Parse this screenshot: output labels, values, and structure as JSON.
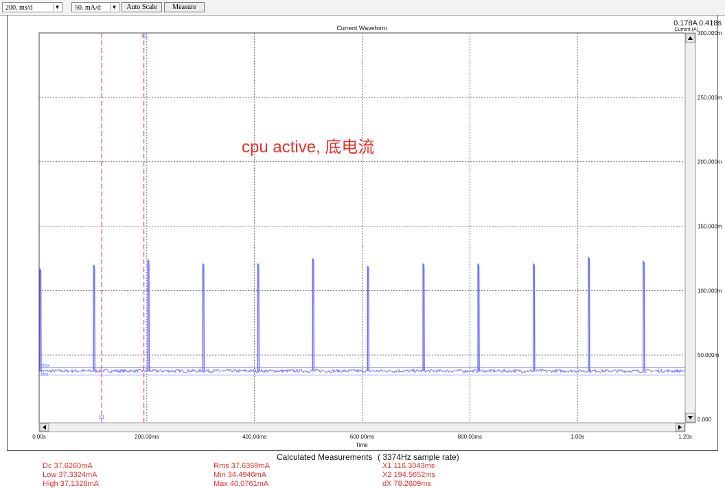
{
  "toolbar": {
    "time_div": "200. ms/d",
    "amp_div": "50. mA/d",
    "auto_scale": "Auto Scale",
    "measure": "Measure"
  },
  "header": {
    "current_value": "0.178A",
    "time_value": "0.418s",
    "axis_unit": "Current (A)"
  },
  "annotation": "cpu active, 底电流",
  "colors": {
    "trace": "#6b6bff",
    "cursor": "#ff4040",
    "annotation": "#e8302a",
    "grid": "#555555"
  },
  "chart_data": {
    "type": "line",
    "title": "Current Waveform",
    "xlabel": "Time",
    "ylabel": "Current (A)",
    "xlim": [
      0,
      1.2
    ],
    "ylim": [
      0,
      300
    ],
    "x_ticks": [
      0,
      0.2,
      0.4,
      0.6,
      0.8,
      1.0,
      1.2
    ],
    "x_tick_labels": [
      "0.00s",
      "200.00ms",
      "400.00ms",
      "600.00ms",
      "800.00ms",
      "1.00s",
      "1.20s"
    ],
    "y_ticks": [
      0,
      50,
      100,
      150,
      200,
      250,
      300
    ],
    "y_tick_labels": [
      "0.000",
      "50.000m",
      "100.000m",
      "150.000m",
      "200.000m",
      "250.000m",
      "300.000m"
    ],
    "grid": true,
    "baseline_mA": 37.6,
    "spikes": [
      {
        "t": 0.0,
        "peak_mA": 117
      },
      {
        "t": 0.101,
        "peak_mA": 120
      },
      {
        "t": 0.202,
        "peak_mA": 124
      },
      {
        "t": 0.304,
        "peak_mA": 121
      },
      {
        "t": 0.406,
        "peak_mA": 121
      },
      {
        "t": 0.508,
        "peak_mA": 125
      },
      {
        "t": 0.61,
        "peak_mA": 119
      },
      {
        "t": 0.713,
        "peak_mA": 121
      },
      {
        "t": 0.815,
        "peak_mA": 121
      },
      {
        "t": 0.918,
        "peak_mA": 121
      },
      {
        "t": 1.02,
        "peak_mA": 126
      },
      {
        "t": 1.122,
        "peak_mA": 123
      }
    ],
    "max_line_mA": 40.1,
    "min_line_mA": 34.5,
    "max_label": "Max",
    "min_label": "Min",
    "cursors": [
      {
        "name": "X1",
        "t": 0.1163
      },
      {
        "name": "X2",
        "t": 0.1946
      }
    ]
  },
  "measurements": {
    "title": "Calculated Measurements",
    "sample_rate": "( 3374Hz sample rate)",
    "col1": [
      "Dc  37.6260mA",
      "Low  37.3324mA",
      "High  37.1328mA"
    ],
    "col2": [
      "Rms  37.6369mA",
      "Min  34.4946mA",
      "Max  40.0761mA"
    ],
    "col3": [
      "X1  116.3043ms",
      "X2  194.5652ms",
      "dX  78.2609ms"
    ]
  }
}
